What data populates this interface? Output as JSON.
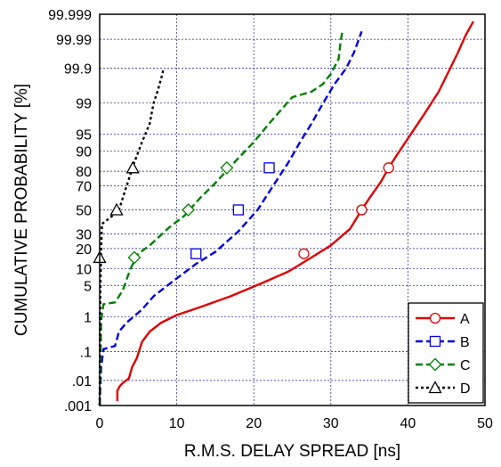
{
  "chart_data": {
    "type": "line",
    "xlabel": "R.M.S. DELAY SPREAD [ns]",
    "ylabel": "CUMULATIVE PROBABILITY [%]",
    "xlim": [
      0,
      50
    ],
    "x_ticks": [
      0,
      10,
      20,
      30,
      40,
      50
    ],
    "y_scale": "normal-probability",
    "y_ticks": [
      {
        "value": 0.001,
        "label": ".001"
      },
      {
        "value": 0.01,
        "label": ".01"
      },
      {
        "value": 0.1,
        "label": ".1"
      },
      {
        "value": 1,
        "label": "1"
      },
      {
        "value": 5,
        "label": "5"
      },
      {
        "value": 10,
        "label": "10"
      },
      {
        "value": 20,
        "label": "20"
      },
      {
        "value": 30,
        "label": "30"
      },
      {
        "value": 50,
        "label": "50"
      },
      {
        "value": 70,
        "label": "70"
      },
      {
        "value": 80,
        "label": "80"
      },
      {
        "value": 90,
        "label": "90"
      },
      {
        "value": 95,
        "label": "95"
      },
      {
        "value": 99,
        "label": "99"
      },
      {
        "value": 99.9,
        "label": "99.9"
      },
      {
        "value": 99.99,
        "label": "99.99"
      },
      {
        "value": 99.999,
        "label": "99.999"
      }
    ],
    "grid": true,
    "legend_position": "bottom-right",
    "series": [
      {
        "name": "A",
        "color": "#e00000",
        "dash": "solid",
        "marker": "circle",
        "points": [
          [
            2.3,
            0.0015
          ],
          [
            2.3,
            0.004
          ],
          [
            2.6,
            0.006
          ],
          [
            3.0,
            0.008
          ],
          [
            3.8,
            0.012
          ],
          [
            4.2,
            0.03
          ],
          [
            4.8,
            0.06
          ],
          [
            5.5,
            0.2
          ],
          [
            6.5,
            0.4
          ],
          [
            8.0,
            0.7
          ],
          [
            10.0,
            1.1
          ],
          [
            13.0,
            1.7
          ],
          [
            17.0,
            3.0
          ],
          [
            21.0,
            5.5
          ],
          [
            24.5,
            9.0
          ],
          [
            27.5,
            15.0
          ],
          [
            30.0,
            22.0
          ],
          [
            32.5,
            34.0
          ],
          [
            34.0,
            50.0
          ],
          [
            35.0,
            60.0
          ],
          [
            36.5,
            73.0
          ],
          [
            37.5,
            82.0
          ],
          [
            38.5,
            88.0
          ],
          [
            40.0,
            94.0
          ],
          [
            42.0,
            98.0
          ],
          [
            44.0,
            99.5
          ],
          [
            45.5,
            99.9
          ],
          [
            46.5,
            99.97
          ],
          [
            47.5,
            99.993
          ],
          [
            48.5,
            99.998
          ]
        ],
        "markers": [
          [
            26.5,
            17
          ],
          [
            34.0,
            50
          ],
          [
            37.5,
            82
          ]
        ]
      },
      {
        "name": "B",
        "color": "#0000e0",
        "dash": "dash",
        "marker": "square",
        "points": [
          [
            0.0,
            0.001
          ],
          [
            0.2,
            0.03
          ],
          [
            0.5,
            0.12
          ],
          [
            2.0,
            0.15
          ],
          [
            2.5,
            0.4
          ],
          [
            3.5,
            0.7
          ],
          [
            5.5,
            1.5
          ],
          [
            7.0,
            3.0
          ],
          [
            9.5,
            6.0
          ],
          [
            12.5,
            12.0
          ],
          [
            15.0,
            18.0
          ],
          [
            18.0,
            32.0
          ],
          [
            20.5,
            50.0
          ],
          [
            22.5,
            70.0
          ],
          [
            24.5,
            85.0
          ],
          [
            26.0,
            93.0
          ],
          [
            27.5,
            97.0
          ],
          [
            29.0,
            99.0
          ],
          [
            30.5,
            99.7
          ],
          [
            32.0,
            99.9
          ],
          [
            33.0,
            99.97
          ],
          [
            34.0,
            99.995
          ]
        ],
        "markers": [
          [
            12.5,
            17
          ],
          [
            18.0,
            50
          ],
          [
            22.0,
            82
          ]
        ]
      },
      {
        "name": "C",
        "color": "#008000",
        "dash": "dash",
        "marker": "diamond",
        "points": [
          [
            0.0,
            0.001
          ],
          [
            0.2,
            0.8
          ],
          [
            0.5,
            2.0
          ],
          [
            2.0,
            2.2
          ],
          [
            3.0,
            4.0
          ],
          [
            4.0,
            10.0
          ],
          [
            5.0,
            17.0
          ],
          [
            6.5,
            22.0
          ],
          [
            9.0,
            35.0
          ],
          [
            11.0,
            45.0
          ],
          [
            13.0,
            60.0
          ],
          [
            15.0,
            72.0
          ],
          [
            17.5,
            85.0
          ],
          [
            20.0,
            93.0
          ],
          [
            22.0,
            97.0
          ],
          [
            23.5,
            98.5
          ],
          [
            25.0,
            99.3
          ],
          [
            27.5,
            99.5
          ],
          [
            29.0,
            99.7
          ],
          [
            30.0,
            99.85
          ],
          [
            31.0,
            99.95
          ],
          [
            31.3,
            99.99
          ],
          [
            31.5,
            99.995
          ]
        ],
        "markers": [
          [
            4.5,
            15
          ],
          [
            11.5,
            50
          ],
          [
            16.5,
            82
          ]
        ]
      },
      {
        "name": "D",
        "color": "#000000",
        "dash": "dot",
        "marker": "triangle",
        "points": [
          [
            0.0,
            0.001
          ],
          [
            0.05,
            1.0
          ],
          [
            0.1,
            5.0
          ],
          [
            0.2,
            20.0
          ],
          [
            0.3,
            38.0
          ],
          [
            1.5,
            44.0
          ],
          [
            2.5,
            50.0
          ],
          [
            3.5,
            70.0
          ],
          [
            4.5,
            85.0
          ],
          [
            5.5,
            93.0
          ],
          [
            6.5,
            97.0
          ],
          [
            7.0,
            99.0
          ],
          [
            7.5,
            99.5
          ],
          [
            8.0,
            99.8
          ],
          [
            8.3,
            99.9
          ]
        ],
        "markers": [
          [
            0.0,
            15
          ],
          [
            2.2,
            50
          ],
          [
            4.3,
            82
          ]
        ]
      }
    ]
  }
}
